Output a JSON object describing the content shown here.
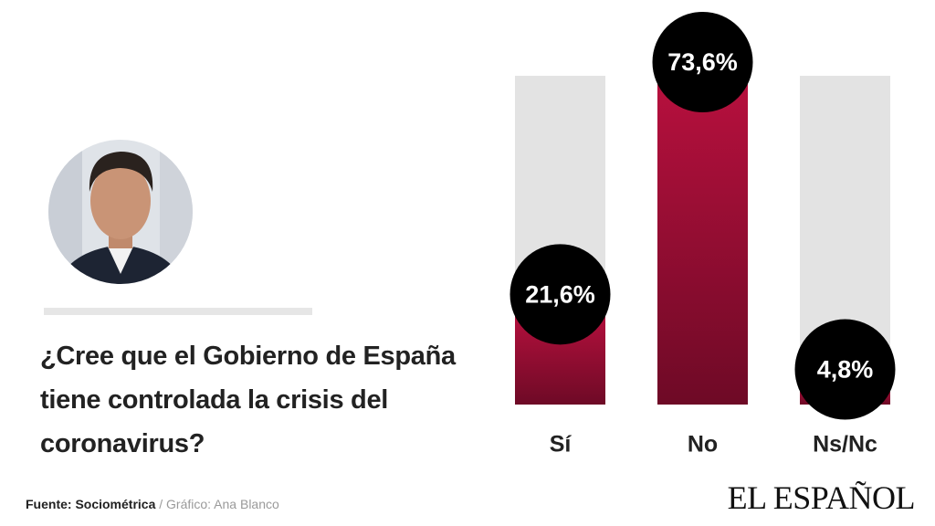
{
  "chart_data": {
    "type": "bar",
    "title": "¿Cree que el Gobierno de España tiene controlada la crisis del coronavirus?",
    "categories": [
      "Sí",
      "No",
      "Ns/Nc"
    ],
    "values": [
      21.6,
      73.6,
      4.8
    ],
    "value_labels": [
      "21,6%",
      "73,6%",
      "4,8%"
    ],
    "color": "#a50f36",
    "track_color": "#e3e3e3",
    "source": "Fuente: Sociométrica",
    "credit": "/ Gráfico: Ana Blanco",
    "logo": "EL ESPAÑOL"
  }
}
